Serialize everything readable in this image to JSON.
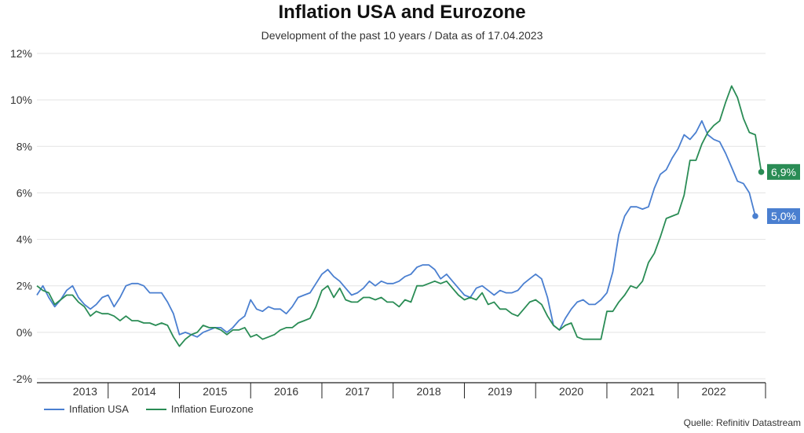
{
  "title": "Inflation USA and Eurozone",
  "subtitle": "Development of the past 10 years / Data as of 17.04.2023",
  "source": "Quelle: Refinitiv Datastream",
  "chart_data": {
    "type": "line",
    "x_unit": "month index starting Jan 2013",
    "x_tick_labels": [
      "2013",
      "2014",
      "2015",
      "2016",
      "2017",
      "2018",
      "2019",
      "2020",
      "2021",
      "2022"
    ],
    "y_tick_labels": [
      "12%",
      "10%",
      "8%",
      "6%",
      "4%",
      "2%",
      "0%",
      "-2%"
    ],
    "ylim": [
      -2,
      12
    ],
    "grid": true,
    "legend": "bottom-left",
    "series": [
      {
        "name": "Inflation USA",
        "color": "#4a7fd0",
        "end_label": "5,0%",
        "values": [
          1.6,
          2.0,
          1.5,
          1.1,
          1.4,
          1.8,
          2.0,
          1.5,
          1.2,
          1.0,
          1.2,
          1.5,
          1.6,
          1.1,
          1.5,
          2.0,
          2.1,
          2.1,
          2.0,
          1.7,
          1.7,
          1.7,
          1.3,
          0.8,
          -0.1,
          0.0,
          -0.1,
          -0.2,
          0.0,
          0.1,
          0.2,
          0.2,
          0.0,
          0.2,
          0.5,
          0.7,
          1.4,
          1.0,
          0.9,
          1.1,
          1.0,
          1.0,
          0.8,
          1.1,
          1.5,
          1.6,
          1.7,
          2.1,
          2.5,
          2.7,
          2.4,
          2.2,
          1.9,
          1.6,
          1.7,
          1.9,
          2.2,
          2.0,
          2.2,
          2.1,
          2.1,
          2.2,
          2.4,
          2.5,
          2.8,
          2.9,
          2.9,
          2.7,
          2.3,
          2.5,
          2.2,
          1.9,
          1.6,
          1.5,
          1.9,
          2.0,
          1.8,
          1.6,
          1.8,
          1.7,
          1.7,
          1.8,
          2.1,
          2.3,
          2.5,
          2.3,
          1.5,
          0.3,
          0.1,
          0.6,
          1.0,
          1.3,
          1.4,
          1.2,
          1.2,
          1.4,
          1.7,
          2.6,
          4.2,
          5.0,
          5.4,
          5.4,
          5.3,
          5.4,
          6.2,
          6.8,
          7.0,
          7.5,
          7.9,
          8.5,
          8.3,
          8.6,
          9.1,
          8.5,
          8.3,
          8.2,
          7.7,
          7.1,
          6.5,
          6.4,
          6.0,
          5.0
        ]
      },
      {
        "name": "Inflation Eurozone",
        "color": "#2a8c55",
        "end_label": "6,9%",
        "values": [
          2.0,
          1.8,
          1.7,
          1.2,
          1.4,
          1.6,
          1.6,
          1.3,
          1.1,
          0.7,
          0.9,
          0.8,
          0.8,
          0.7,
          0.5,
          0.7,
          0.5,
          0.5,
          0.4,
          0.4,
          0.3,
          0.4,
          0.3,
          -0.2,
          -0.6,
          -0.3,
          -0.1,
          0.0,
          0.3,
          0.2,
          0.2,
          0.1,
          -0.1,
          0.1,
          0.1,
          0.2,
          -0.2,
          -0.1,
          -0.3,
          -0.2,
          -0.1,
          0.1,
          0.2,
          0.2,
          0.4,
          0.5,
          0.6,
          1.1,
          1.8,
          2.0,
          1.5,
          1.9,
          1.4,
          1.3,
          1.3,
          1.5,
          1.5,
          1.4,
          1.5,
          1.3,
          1.3,
          1.1,
          1.4,
          1.3,
          2.0,
          2.0,
          2.1,
          2.2,
          2.1,
          2.2,
          1.9,
          1.6,
          1.4,
          1.5,
          1.4,
          1.7,
          1.2,
          1.3,
          1.0,
          1.0,
          0.8,
          0.7,
          1.0,
          1.3,
          1.4,
          1.2,
          0.7,
          0.3,
          0.1,
          0.3,
          0.4,
          -0.2,
          -0.3,
          -0.3,
          -0.3,
          -0.3,
          0.9,
          0.9,
          1.3,
          1.6,
          2.0,
          1.9,
          2.2,
          3.0,
          3.4,
          4.1,
          4.9,
          5.0,
          5.1,
          5.9,
          7.4,
          7.4,
          8.1,
          8.6,
          8.9,
          9.1,
          9.9,
          10.6,
          10.1,
          9.2,
          8.6,
          8.5,
          6.9
        ]
      }
    ]
  }
}
